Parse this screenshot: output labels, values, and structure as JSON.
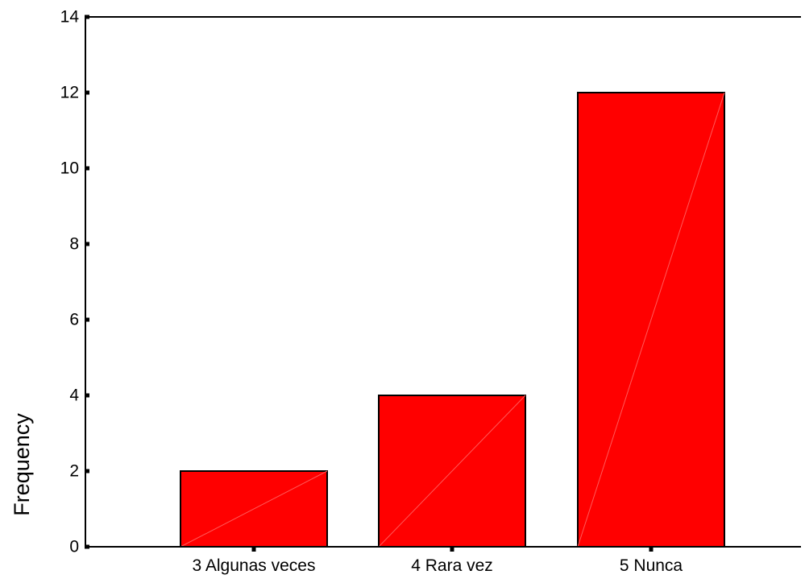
{
  "chart_data": {
    "type": "bar",
    "categories": [
      "3 Algunas veces",
      "4 Rara vez",
      "5 Nunca"
    ],
    "values": [
      2,
      4,
      12
    ],
    "title": "",
    "xlabel": "",
    "ylabel": "Frequency",
    "ylim": [
      0,
      14
    ],
    "yticks": [
      0,
      2,
      4,
      6,
      8,
      10,
      12,
      14
    ],
    "grid": false,
    "bar_color": "#ff0000",
    "bar_stroke": "#000000"
  }
}
